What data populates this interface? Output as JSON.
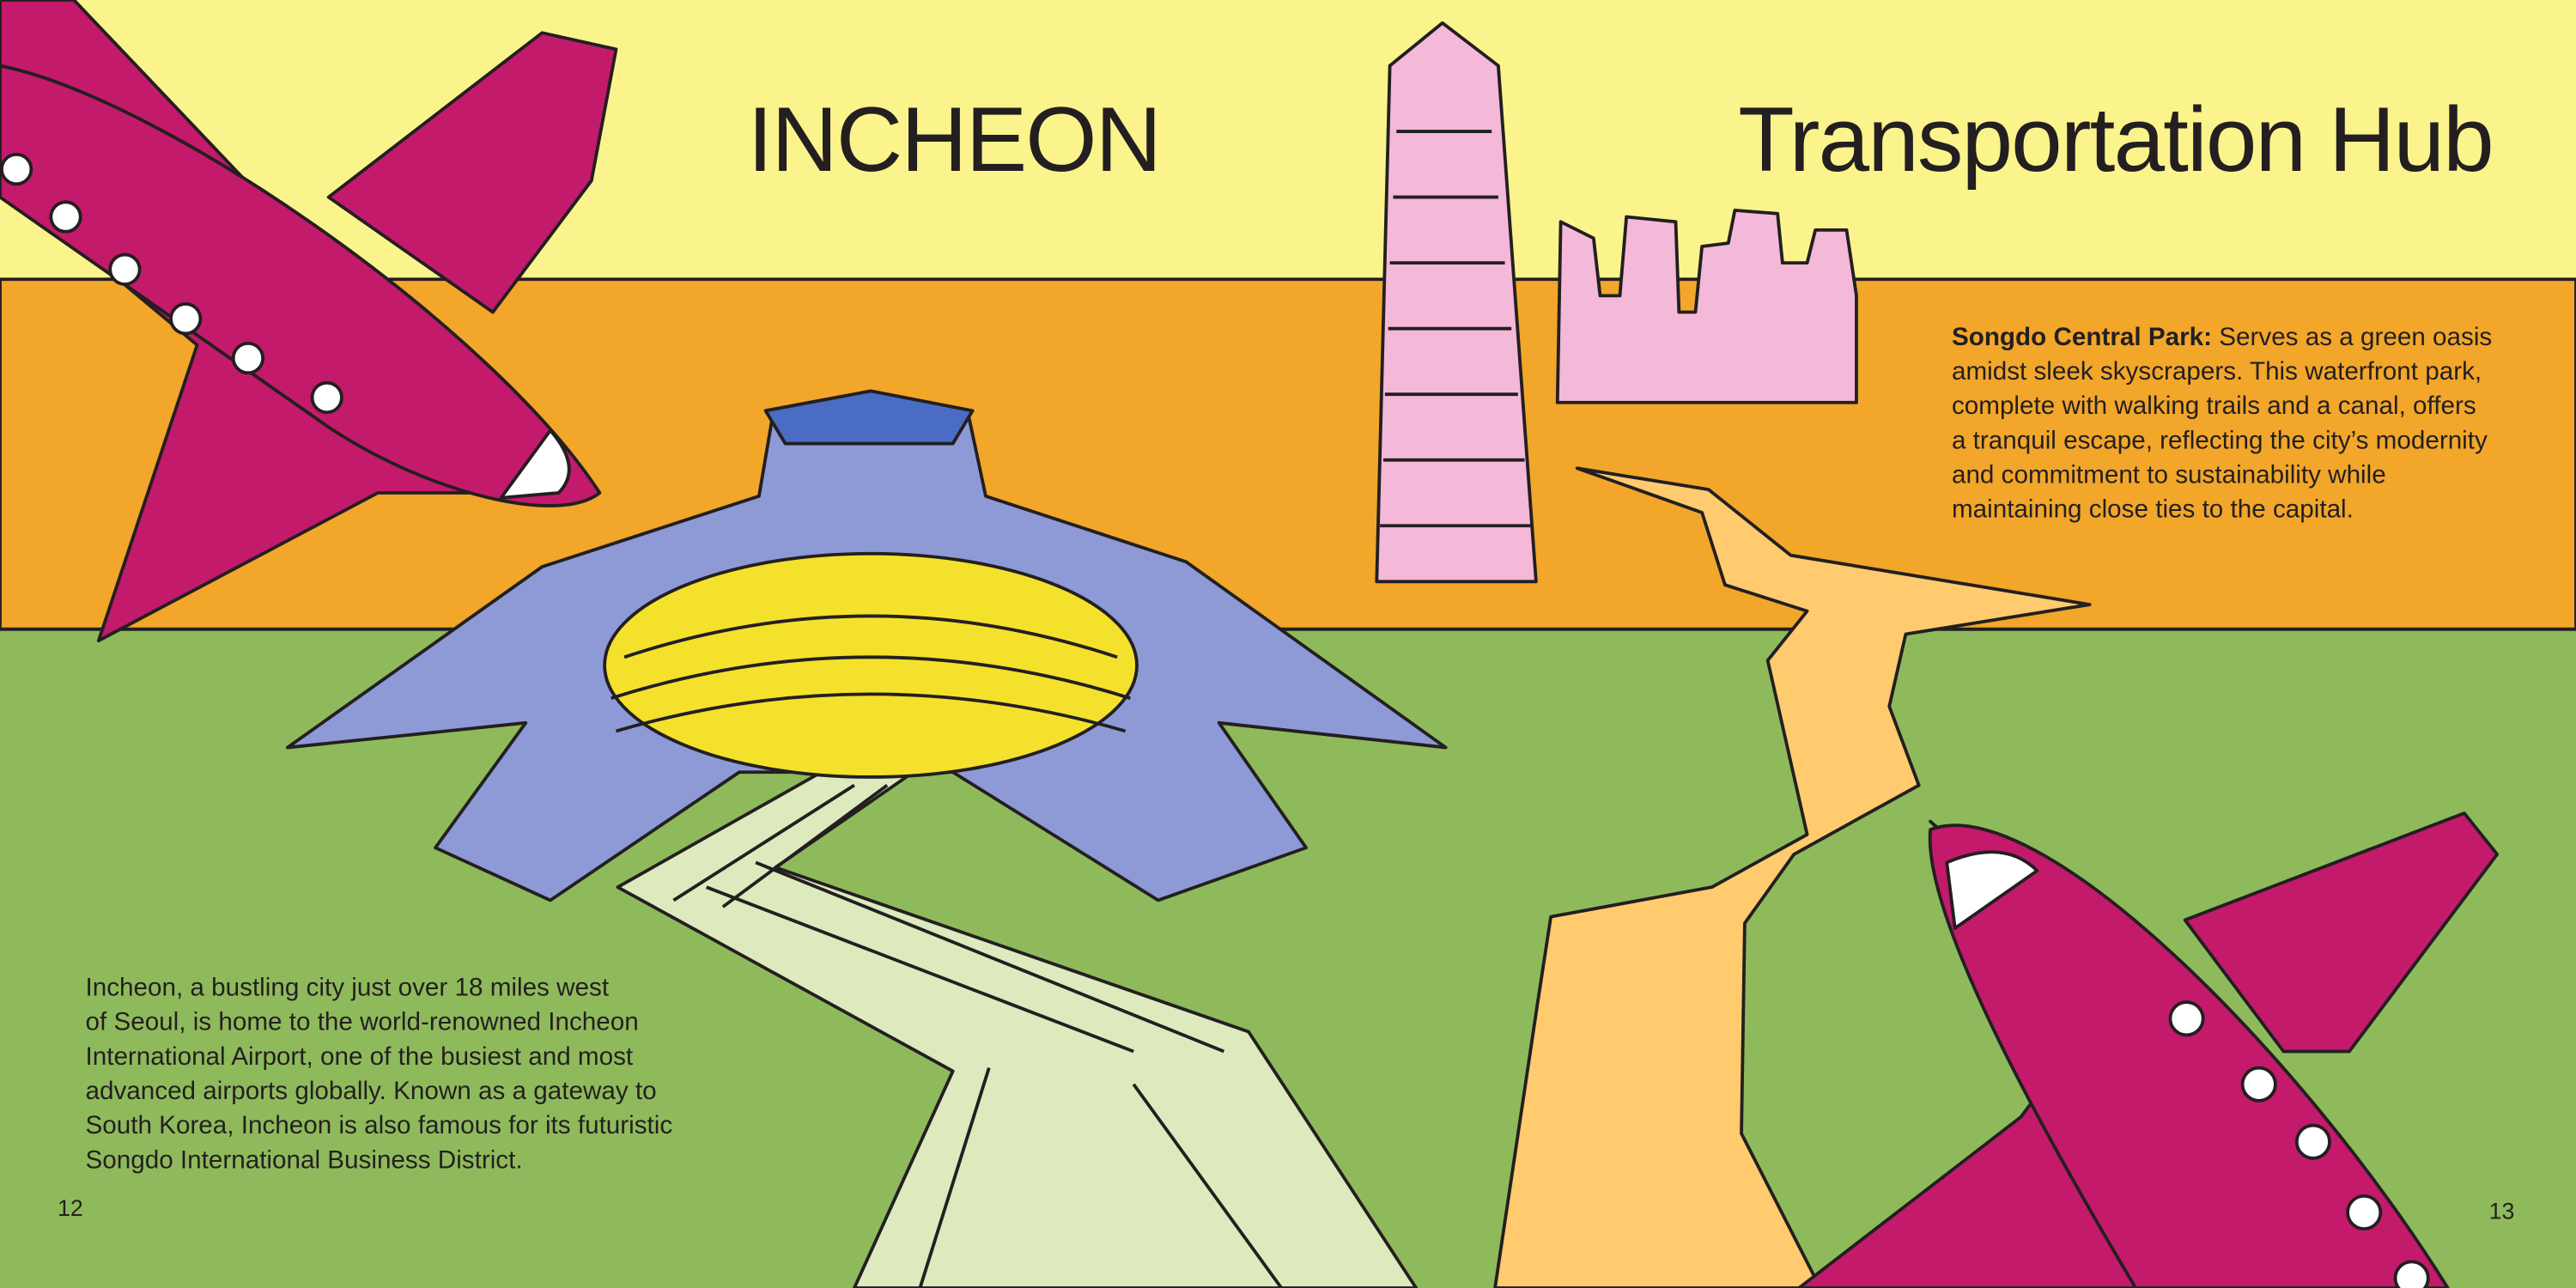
{
  "header": {
    "title": "INCHEON",
    "subtitle": "Transportation Hub"
  },
  "park_caption": {
    "label": "Songdo Central Park:",
    "lines": [
      "Serves as a green oasis",
      "amidst sleek skyscrapers. This waterfront park,",
      "complete with walking trails and a canal, offers",
      "a tranquil escape, reflecting the city’s modernity",
      "and commitment to sustainability while",
      "maintaining close ties to the capital."
    ]
  },
  "intro": {
    "lines": [
      "Incheon, a bustling city just over 18 miles west",
      "of Seoul, is home to the world-renowned Incheon",
      "International Airport, one of the busiest and most",
      "advanced airports globally. Known as a gateway to",
      "South Korea, Incheon is also famous for its futuristic",
      "Songdo International Business District."
    ]
  },
  "page_numbers": {
    "left": "12",
    "right": "13"
  }
}
